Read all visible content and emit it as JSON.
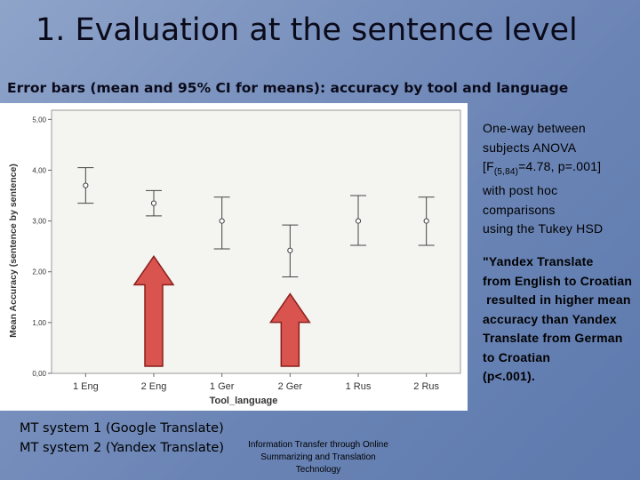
{
  "slide": {
    "title": "1. Evaluation at the sentence level",
    "subtitle": "Error bars (mean and 95% CI for means): accuracy by tool and language",
    "notes": {
      "anova_lines": [
        "One-way between",
        "subjects ANOVA",
        "with post hoc",
        "comparisons",
        "using the Tukey HSD"
      ],
      "anova_f_prefix": "[F",
      "anova_f_sub": "(5,84)",
      "anova_f_rest": "=4.78, p=.001]",
      "finding_lines": [
        "\"Yandex Translate",
        "from English to Croatian",
        " resulted in higher mean",
        "accuracy than Yandex",
        "Translate from German",
        "to Croatian",
        "(p<.001)."
      ]
    },
    "legend": [
      "MT system 1 (Google Translate)",
      "MT system 2 (Yandex Translate)"
    ],
    "footer": "Information Transfer through Online Summarizing and Translation Technology"
  },
  "chart_data": {
    "type": "errorbar",
    "xlabel": "Tool_language",
    "ylabel": "Mean Accuracy (sentence by sentence)",
    "ylim": [
      0,
      5
    ],
    "yticks": [
      "0,00",
      "1,00",
      "2,00",
      "3,00",
      "4,00",
      "5,00"
    ],
    "categories": [
      "1 Eng",
      "2 Eng",
      "1 Ger",
      "2 Ger",
      "1 Rus",
      "2 Rus"
    ],
    "mean": [
      3.7,
      3.35,
      3.0,
      2.42,
      3.0,
      3.0
    ],
    "ci_low": [
      3.35,
      3.1,
      2.45,
      1.9,
      2.52,
      2.52
    ],
    "ci_high": [
      4.05,
      3.6,
      3.47,
      2.92,
      3.5,
      3.47
    ],
    "highlight_arrows": [
      "2 Eng",
      "2 Ger"
    ],
    "colors": {
      "arrow_fill": "#d9534f",
      "arrow_stroke": "#8a1f1c",
      "marker": "#444444"
    }
  }
}
